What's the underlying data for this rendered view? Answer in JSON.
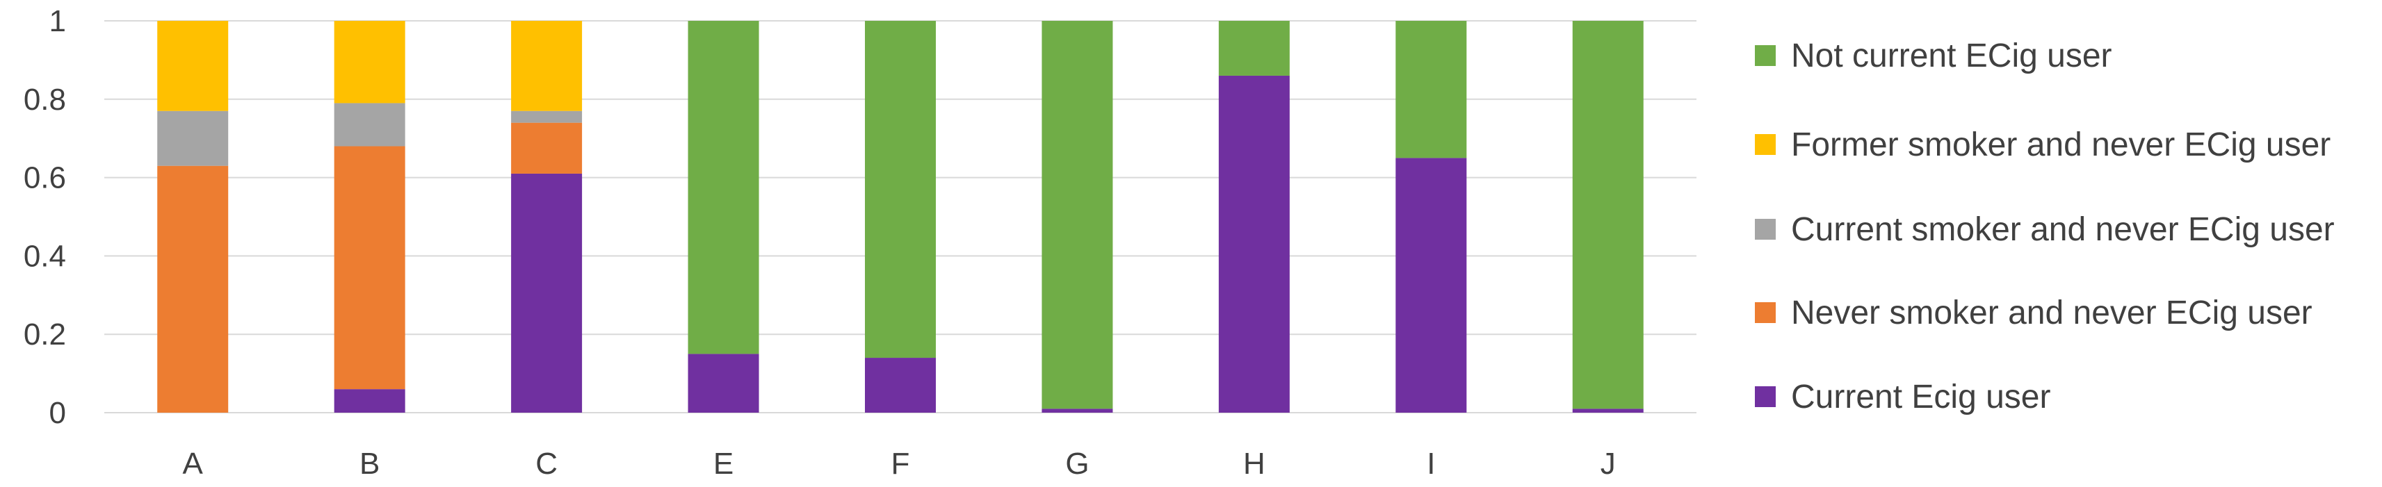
{
  "chart_data": {
    "type": "bar",
    "stacked": true,
    "title": "",
    "xlabel": "",
    "ylabel": "",
    "ylim": [
      0,
      1
    ],
    "yticks": [
      "0",
      "0.2",
      "0.4",
      "0.6",
      "0.8",
      "1"
    ],
    "ytick_values": [
      0,
      0.2,
      0.4,
      0.6,
      0.8,
      1
    ],
    "grid": true,
    "legend_position": "right",
    "categories": [
      "A",
      "B",
      "C",
      "E",
      "F",
      "G",
      "H",
      "I",
      "J"
    ],
    "series": [
      {
        "name": "Current Ecig user",
        "color": "#7030A0",
        "values": [
          0,
          0.06,
          0.61,
          0.15,
          0.14,
          0.01,
          0.86,
          0.65,
          0.01
        ]
      },
      {
        "name": "Never smoker and never ECig user",
        "color": "#ED7D31",
        "values": [
          0.63,
          0.62,
          0.13,
          0,
          0,
          0,
          0,
          0,
          0
        ]
      },
      {
        "name": "Current smoker and never ECig user",
        "color": "#A5A5A5",
        "values": [
          0.14,
          0.11,
          0.03,
          0,
          0,
          0,
          0,
          0,
          0
        ]
      },
      {
        "name": "Former smoker and never ECig user",
        "color": "#FFC000",
        "values": [
          0.23,
          0.21,
          0.23,
          0,
          0,
          0,
          0,
          0,
          0
        ]
      },
      {
        "name": "Not current ECig user",
        "color": "#70AD47",
        "values": [
          0,
          0,
          0,
          0.85,
          0.86,
          0.99,
          0.14,
          0.35,
          0.99
        ]
      }
    ],
    "legend_order": [
      "Not current ECig user",
      "Former smoker and never ECig user",
      "Current smoker and never ECig user",
      "Never smoker and never ECig user",
      "Current Ecig user"
    ]
  }
}
